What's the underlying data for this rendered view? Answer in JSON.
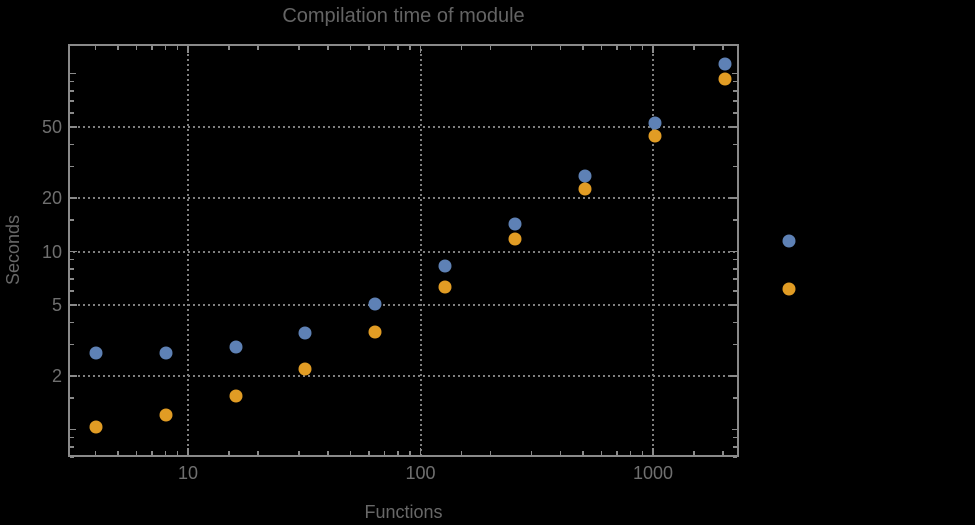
{
  "chart": {
    "title": "Compilation time of module",
    "x_axis_label": "Functions",
    "y_axis_label": "Seconds"
  },
  "chart_data": {
    "type": "scatter",
    "title": "Compilation time of module",
    "xlabel": "Functions",
    "ylabel": "Seconds",
    "x_scale": "log",
    "y_scale": "log",
    "grid": "dotted",
    "x_range": [
      3.1,
      2330
    ],
    "y_range": [
      0.7,
      148
    ],
    "x": [
      4,
      8,
      16,
      32,
      64,
      128,
      256,
      512,
      1024,
      2048
    ],
    "series": [
      {
        "name": "blue",
        "color": "#5E81B5",
        "values": [
          2.7,
          2.7,
          2.9,
          3.5,
          5.1,
          8.3,
          14.3,
          26.5,
          53,
          113
        ]
      },
      {
        "name": "orange",
        "color": "#E19C24",
        "values": [
          1.03,
          1.2,
          1.55,
          2.2,
          3.55,
          6.3,
          11.8,
          22.4,
          44.5,
          93
        ]
      }
    ],
    "x_tick_values": [
      10,
      100,
      1000
    ],
    "x_tick_labels": [
      "10",
      "100",
      "1000"
    ],
    "y_tick_values": [
      2,
      5,
      10,
      20,
      50
    ],
    "y_tick_labels": [
      "2",
      "5",
      "10",
      "20",
      "50"
    ],
    "legend_position": "right-outside",
    "legend_markers": [
      {
        "series": "blue",
        "color": "#5E81B5"
      },
      {
        "series": "orange",
        "color": "#E19C24"
      }
    ]
  },
  "style": {
    "background": "#000000",
    "frame_color": "#8a8a8a",
    "grid_color": "#7f7f7f",
    "title_color": "#646464",
    "tick_label_color": "#6f6f6f",
    "axis_label_color": "#686868",
    "series_blue": "#5E81B5",
    "series_orange": "#E19C24"
  }
}
